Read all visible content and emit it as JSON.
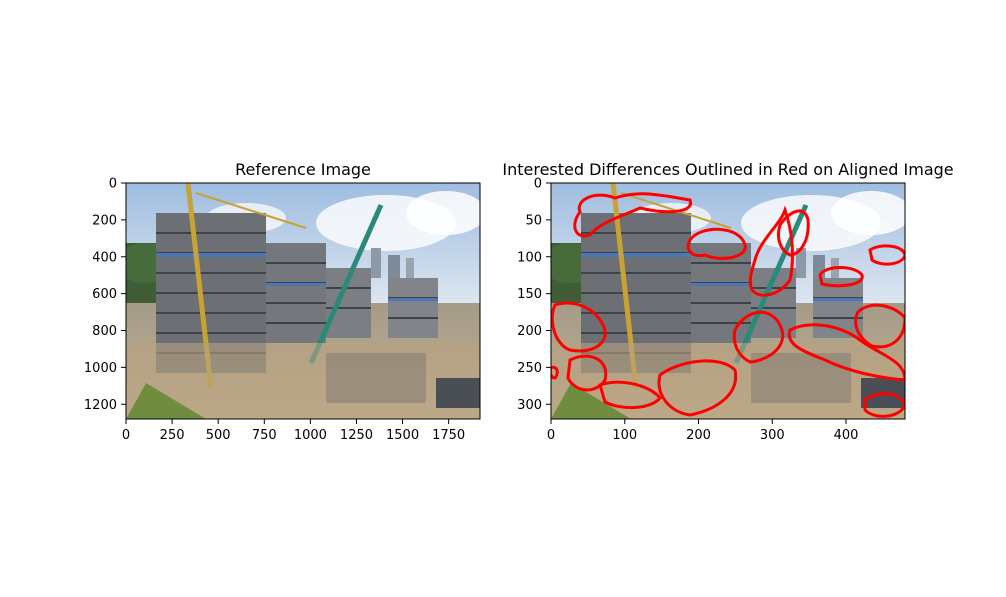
{
  "chart_data": [
    {
      "type": "image",
      "title": "Reference Image",
      "x_ticks": [
        "0",
        "250",
        "500",
        "750",
        "1000",
        "1250",
        "1500",
        "1750"
      ],
      "x_tick_values": [
        0,
        250,
        500,
        750,
        1000,
        1250,
        1500,
        1750
      ],
      "y_ticks": [
        "0",
        "200",
        "400",
        "600",
        "800",
        "1000",
        "1200"
      ],
      "y_tick_values": [
        0,
        200,
        400,
        600,
        800,
        1000,
        1200
      ],
      "xlim": [
        0,
        1920
      ],
      "ylim": [
        1280,
        0
      ]
    },
    {
      "type": "image",
      "title": "Interested Differences Outlined in Red on Aligned Image",
      "x_ticks": [
        "0",
        "100",
        "200",
        "300",
        "400"
      ],
      "x_tick_values": [
        0,
        100,
        200,
        300,
        400
      ],
      "y_ticks": [
        "0",
        "50",
        "100",
        "150",
        "200",
        "250",
        "300"
      ],
      "y_tick_values": [
        0,
        50,
        100,
        150,
        200,
        250,
        300
      ],
      "xlim": [
        0,
        480
      ],
      "ylim": [
        320,
        0
      ],
      "outline_color": "#ff0000"
    }
  ],
  "colors": {
    "sky": "#c9d8ea",
    "ground": "#b9a888",
    "outline": "#ff0000"
  }
}
